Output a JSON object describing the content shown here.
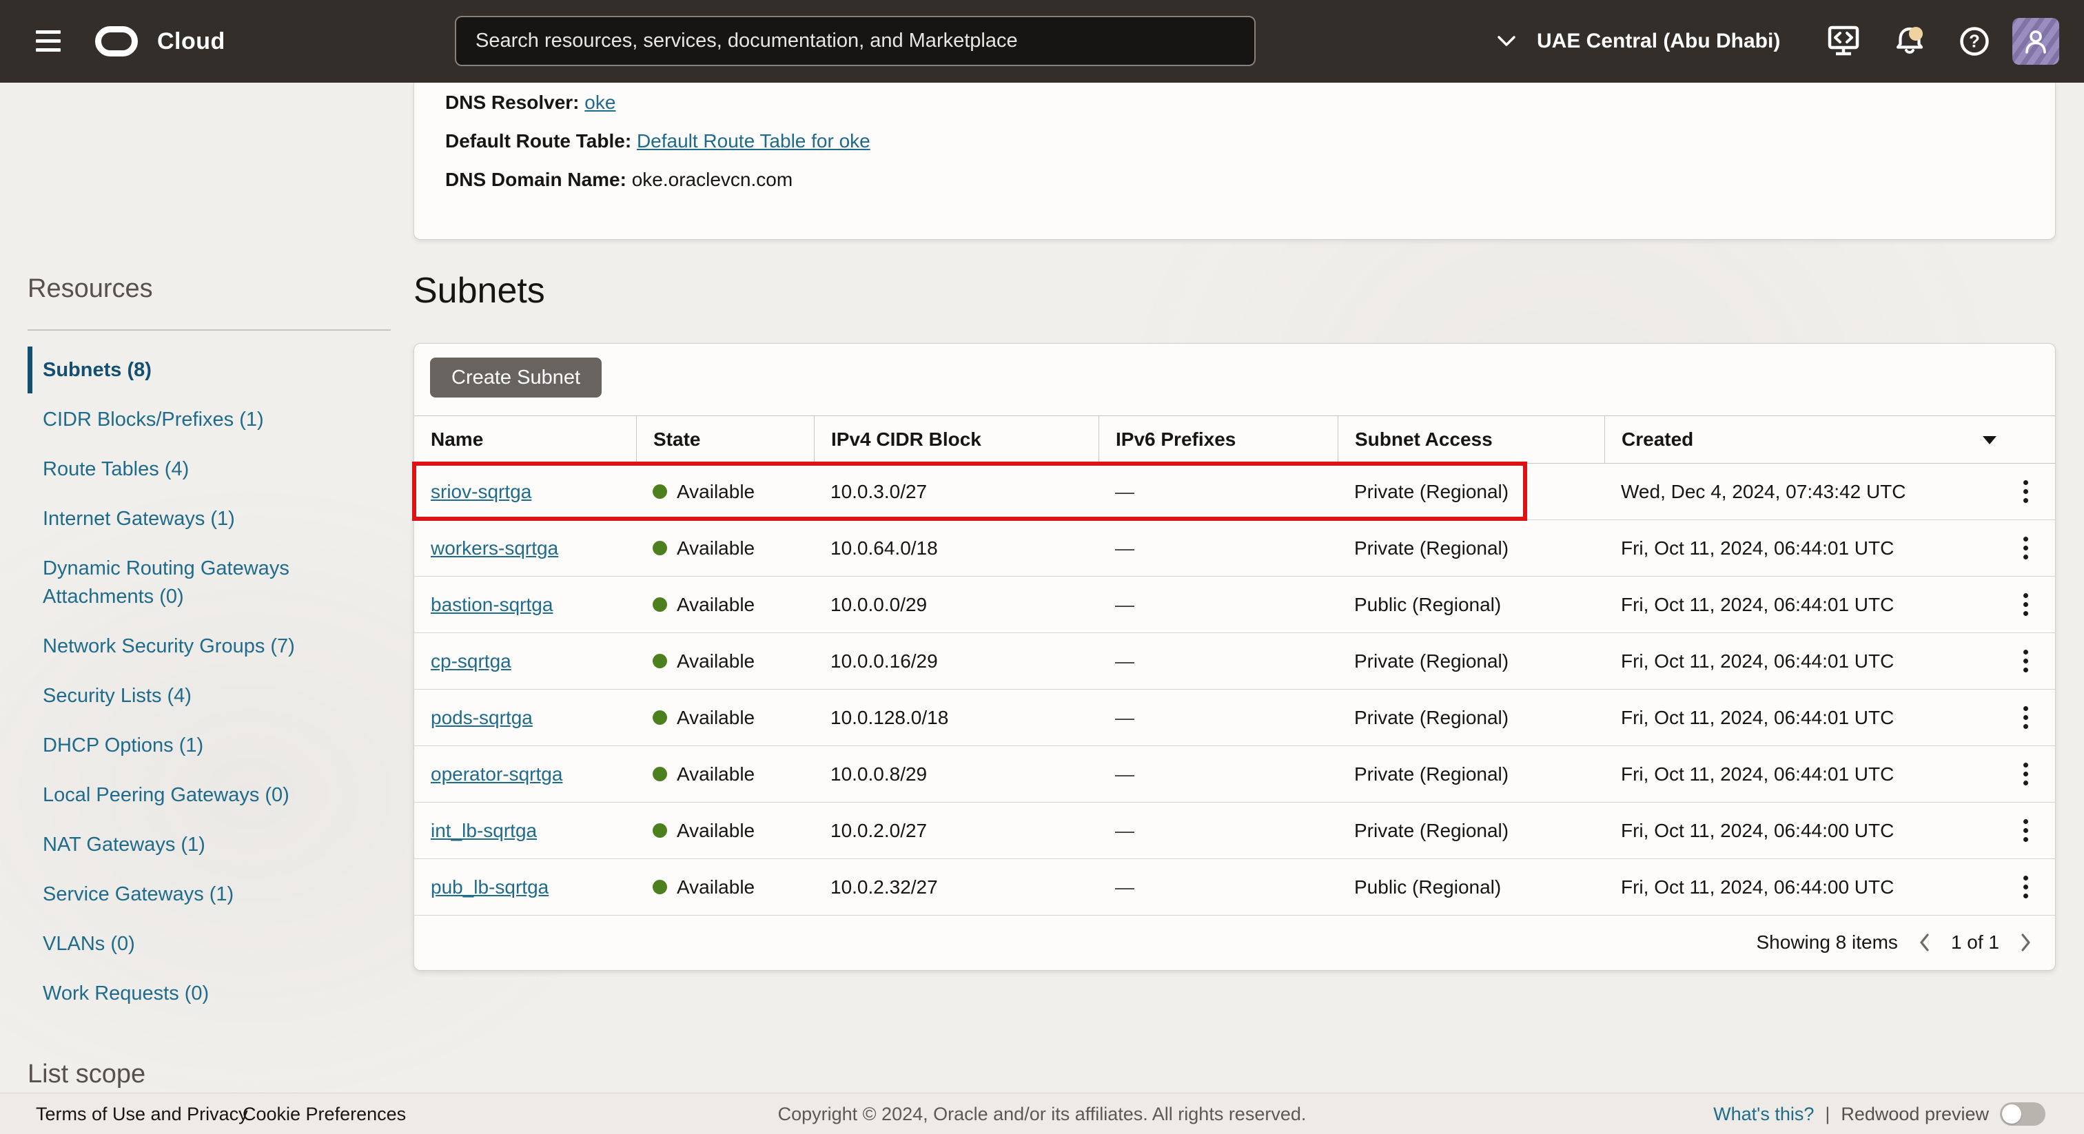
{
  "topbar": {
    "brand": "Cloud",
    "search_placeholder": "Search resources, services, documentation, and Marketplace",
    "region": "UAE Central (Abu Dhabi)"
  },
  "vcn_details": {
    "dns_resolver_label": "DNS Resolver:",
    "dns_resolver_link": "oke",
    "route_table_label": "Default Route Table:",
    "route_table_link": "Default Route Table for oke",
    "dns_domain_label": "DNS Domain Name:",
    "dns_domain_value": "oke.oraclevcn.com"
  },
  "sidebar": {
    "title": "Resources",
    "items": [
      {
        "label": "Subnets (8)",
        "selected": true
      },
      {
        "label": "CIDR Blocks/Prefixes (1)",
        "selected": false
      },
      {
        "label": "Route Tables (4)",
        "selected": false
      },
      {
        "label": "Internet Gateways (1)",
        "selected": false
      },
      {
        "label": "Dynamic Routing Gateways Attachments (0)",
        "selected": false
      },
      {
        "label": "Network Security Groups (7)",
        "selected": false
      },
      {
        "label": "Security Lists (4)",
        "selected": false
      },
      {
        "label": "DHCP Options (1)",
        "selected": false
      },
      {
        "label": "Local Peering Gateways (0)",
        "selected": false
      },
      {
        "label": "NAT Gateways (1)",
        "selected": false
      },
      {
        "label": "Service Gateways (1)",
        "selected": false
      },
      {
        "label": "VLANs (0)",
        "selected": false
      },
      {
        "label": "Work Requests (0)",
        "selected": false
      }
    ],
    "list_scope_title": "List scope"
  },
  "subnets": {
    "title": "Subnets",
    "create_button_label": "Create Subnet",
    "columns": [
      "Name",
      "State",
      "IPv4 CIDR Block",
      "IPv6 Prefixes",
      "Subnet Access",
      "Created"
    ],
    "sorted_column": "Created",
    "rows": [
      {
        "name": "sriov-sqrtga",
        "state": "Available",
        "cidr": "10.0.3.0/27",
        "ipv6": "—",
        "access": "Private (Regional)",
        "created": "Wed, Dec 4, 2024, 07:43:42 UTC",
        "highlighted": true
      },
      {
        "name": "workers-sqrtga",
        "state": "Available",
        "cidr": "10.0.64.0/18",
        "ipv6": "—",
        "access": "Private (Regional)",
        "created": "Fri, Oct 11, 2024, 06:44:01 UTC",
        "highlighted": false
      },
      {
        "name": "bastion-sqrtga",
        "state": "Available",
        "cidr": "10.0.0.0/29",
        "ipv6": "—",
        "access": "Public (Regional)",
        "created": "Fri, Oct 11, 2024, 06:44:01 UTC",
        "highlighted": false
      },
      {
        "name": "cp-sqrtga",
        "state": "Available",
        "cidr": "10.0.0.16/29",
        "ipv6": "—",
        "access": "Private (Regional)",
        "created": "Fri, Oct 11, 2024, 06:44:01 UTC",
        "highlighted": false
      },
      {
        "name": "pods-sqrtga",
        "state": "Available",
        "cidr": "10.0.128.0/18",
        "ipv6": "—",
        "access": "Private (Regional)",
        "created": "Fri, Oct 11, 2024, 06:44:01 UTC",
        "highlighted": false
      },
      {
        "name": "operator-sqrtga",
        "state": "Available",
        "cidr": "10.0.0.8/29",
        "ipv6": "—",
        "access": "Private (Regional)",
        "created": "Fri, Oct 11, 2024, 06:44:01 UTC",
        "highlighted": false
      },
      {
        "name": "int_lb-sqrtga",
        "state": "Available",
        "cidr": "10.0.2.0/27",
        "ipv6": "—",
        "access": "Private (Regional)",
        "created": "Fri, Oct 11, 2024, 06:44:00 UTC",
        "highlighted": false
      },
      {
        "name": "pub_lb-sqrtga",
        "state": "Available",
        "cidr": "10.0.2.32/27",
        "ipv6": "—",
        "access": "Public (Regional)",
        "created": "Fri, Oct 11, 2024, 06:44:00 UTC",
        "highlighted": false
      }
    ],
    "summary": "Showing 8 items",
    "page_indicator": "1 of 1"
  },
  "footer": {
    "terms": "Terms of Use and Privacy",
    "cookies": "Cookie Preferences",
    "copyright": "Copyright © 2024, Oracle and/or its affiliates. All rights reserved.",
    "whats_this": "What's this?",
    "separator": "|",
    "redwood": "Redwood preview"
  },
  "icons": {
    "topbar": [
      "hamburger-icon",
      "oracle-logo",
      "chevron-down-icon",
      "cloud-shell-icon",
      "notifications-bell-icon",
      "help-icon",
      "user-avatar"
    ],
    "table": [
      "sort-descending-icon",
      "kebab-menu-icon",
      "page-prev-icon",
      "page-next-icon"
    ]
  },
  "colors": {
    "topbar_bg": "#332e2a",
    "link_teal": "#1e6b8c",
    "selected_teal": "#134f70",
    "status_green": "#4c7f1e",
    "highlight_red": "#de1212",
    "button_gray": "#696360",
    "avatar_purple": "#9a8dbf",
    "badge_cream": "#eed3a0",
    "page_bg": "#f1efec"
  }
}
